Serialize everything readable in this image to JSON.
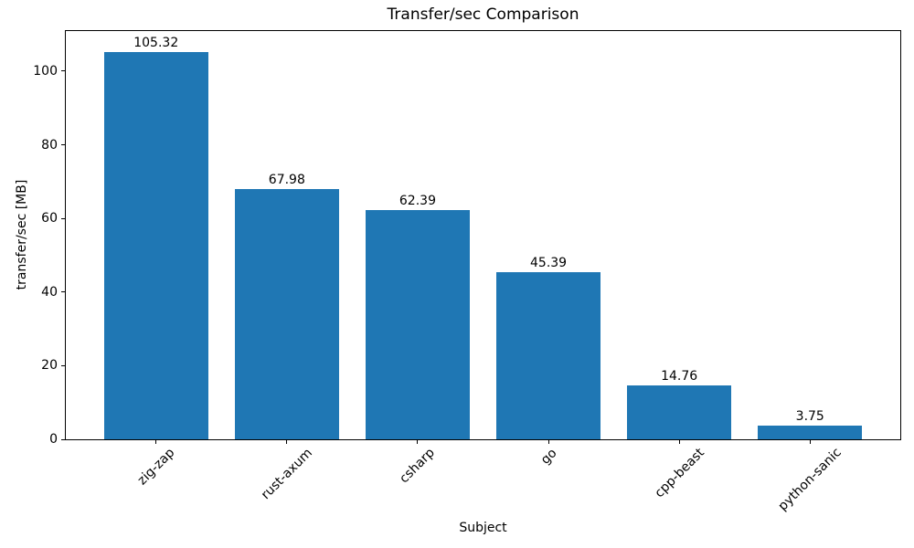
{
  "chart_data": {
    "type": "bar",
    "title": "Transfer/sec Comparison",
    "xlabel": "Subject",
    "ylabel": "transfer/sec [MB]",
    "categories": [
      "zig-zap",
      "rust-axum",
      "csharp",
      "go",
      "cpp-beast",
      "python-sanic"
    ],
    "values": [
      105.32,
      67.98,
      62.39,
      45.39,
      14.76,
      3.75
    ],
    "bar_labels": [
      "105.32",
      "67.98",
      "62.39",
      "45.39",
      "14.76",
      "3.75"
    ],
    "yticks": [
      0,
      20,
      40,
      60,
      80,
      100
    ],
    "ytick_labels": [
      "0",
      "20",
      "40",
      "60",
      "80",
      "100"
    ],
    "ylim": [
      0,
      110.9
    ],
    "x_tick_rotation": 45,
    "grid": false,
    "bar_color": "#1f77b4",
    "axis_color": "#000000",
    "text_color": "#000000",
    "background_color": "#ffffff"
  }
}
